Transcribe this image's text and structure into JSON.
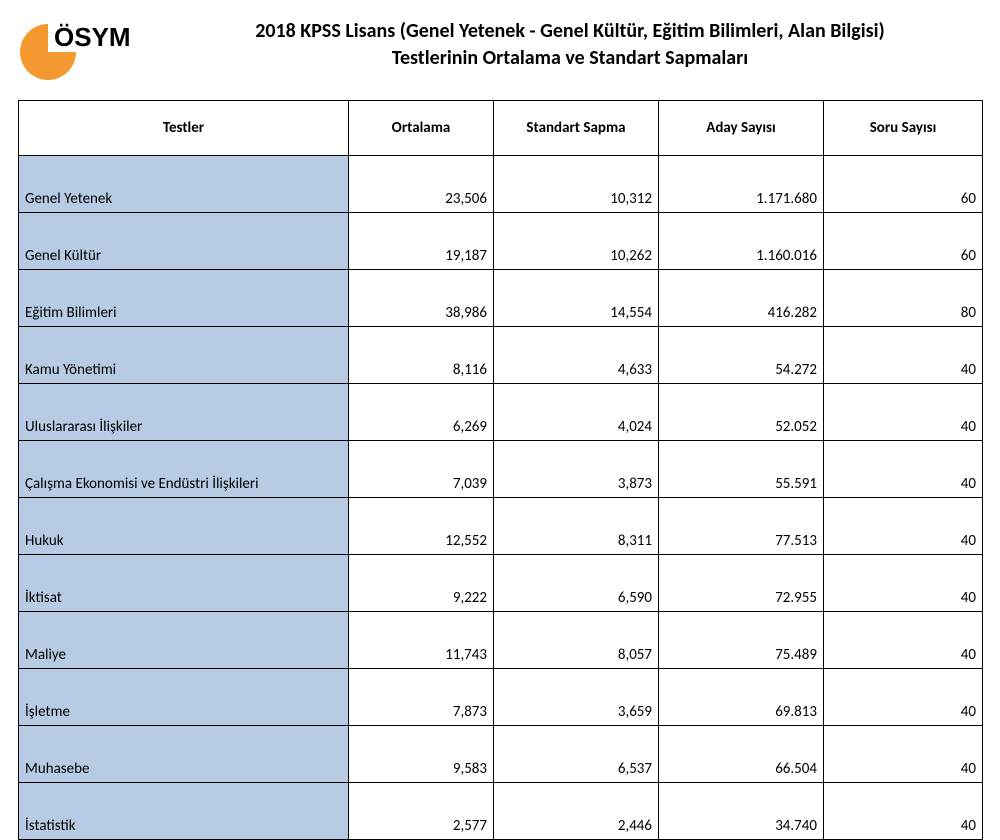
{
  "logo": {
    "text": "ÖSYM",
    "fill": "#f3992f",
    "text_color": "#000000"
  },
  "title": {
    "line1": "2018 KPSS Lisans (Genel Yetenek - Genel Kültür, Eğitim Bilimleri, Alan Bilgisi)",
    "line2": "Testlerinin Ortalama ve Standart Sapmaları"
  },
  "table": {
    "columns": [
      "Testler",
      "Ortalama",
      "Standart Sapma",
      "Aday Sayısı",
      "Soru Sayısı"
    ],
    "col_align": [
      "left",
      "right",
      "right",
      "right",
      "right"
    ],
    "header_bg": "#ffffff",
    "name_bg": "#b8cbe4",
    "border_color": "#000000",
    "font_size": 15,
    "rows": [
      [
        "Genel Yetenek",
        "23,506",
        "10,312",
        "1.171.680",
        "60"
      ],
      [
        "Genel Kültür",
        "19,187",
        "10,262",
        "1.160.016",
        "60"
      ],
      [
        "Eğitim Bilimleri",
        "38,986",
        "14,554",
        "416.282",
        "80"
      ],
      [
        "Kamu Yönetimi",
        "8,116",
        "4,633",
        "54.272",
        "40"
      ],
      [
        "Uluslararası İlişkiler",
        "6,269",
        "4,024",
        "52.052",
        "40"
      ],
      [
        "Çalışma Ekonomisi ve Endüstri İlişkileri",
        "7,039",
        "3,873",
        "55.591",
        "40"
      ],
      [
        "Hukuk",
        "12,552",
        "8,311",
        "77.513",
        "40"
      ],
      [
        "İktisat",
        "9,222",
        "6,590",
        "72.955",
        "40"
      ],
      [
        "Maliye",
        "11,743",
        "8,057",
        "75.489",
        "40"
      ],
      [
        "İşletme",
        "7,873",
        "3,659",
        "69.813",
        "40"
      ],
      [
        "Muhasebe",
        "9,583",
        "6,537",
        "66.504",
        "40"
      ],
      [
        "İstatistik",
        "2,577",
        "2,446",
        "34.740",
        "40"
      ]
    ]
  }
}
